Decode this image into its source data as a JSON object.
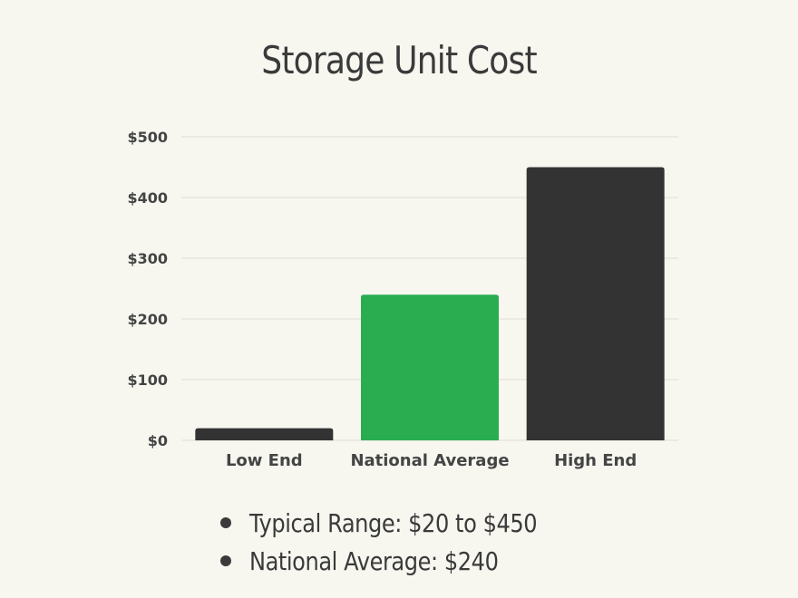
{
  "chart_data": {
    "type": "bar",
    "title": "Storage Unit Cost",
    "categories": [
      "Low End",
      "National Average",
      "High End"
    ],
    "values": [
      20,
      240,
      450
    ],
    "bar_colors": [
      "#333333",
      "#29ad50",
      "#333333"
    ],
    "ylim": [
      0,
      500
    ],
    "yticks": [
      {
        "value": 0,
        "label": "$0"
      },
      {
        "value": 100,
        "label": "$100"
      },
      {
        "value": 200,
        "label": "$200"
      },
      {
        "value": 300,
        "label": "$300"
      },
      {
        "value": 400,
        "label": "$400"
      },
      {
        "value": 500,
        "label": "$500"
      }
    ],
    "xlabel": "",
    "ylabel": "",
    "grid": true
  },
  "notes": [
    "Typical Range: $20 to $450",
    "National Average: $240"
  ],
  "colors": {
    "background": "#f7f7f0",
    "gridline": "#dcdcd4",
    "text": "#3a3a3a"
  }
}
